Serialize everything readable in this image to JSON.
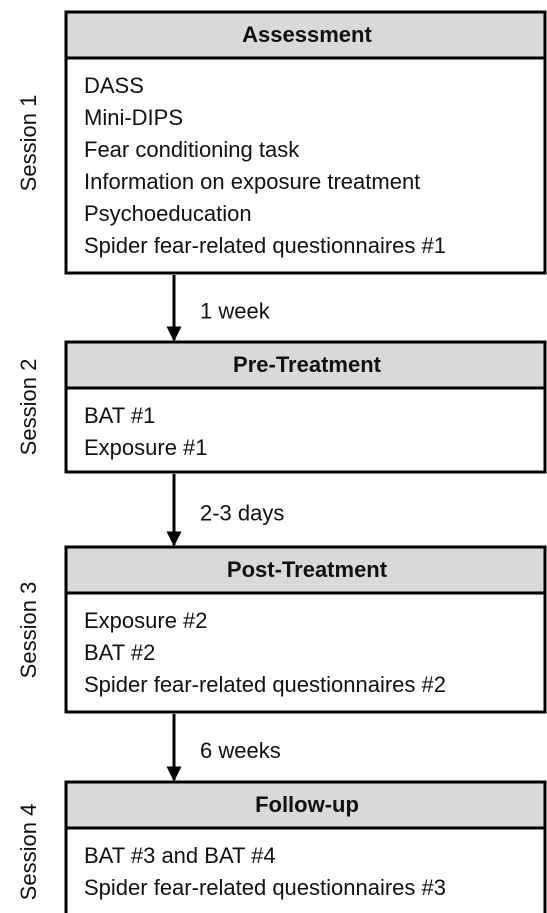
{
  "sessions": [
    {
      "label": "Session 1",
      "title": "Assessment",
      "items": [
        "DASS",
        "Mini-DIPS",
        "Fear conditioning task",
        "Information on exposure treatment",
        "Psychoeducation",
        "Spider fear-related questionnaires #1"
      ]
    },
    {
      "label": "Session 2",
      "title": "Pre-Treatment",
      "items": [
        "BAT #1",
        "Exposure #1"
      ]
    },
    {
      "label": "Session 3",
      "title": "Post-Treatment",
      "items": [
        "Exposure #2",
        "BAT #2",
        "Spider fear-related questionnaires #2"
      ]
    },
    {
      "label": "Session 4",
      "title": "Follow-up",
      "items": [
        "BAT #3 and BAT #4",
        "Spider fear-related questionnaires #3"
      ]
    }
  ],
  "intervals": [
    "1 week",
    "2-3 days",
    "6 weeks"
  ]
}
